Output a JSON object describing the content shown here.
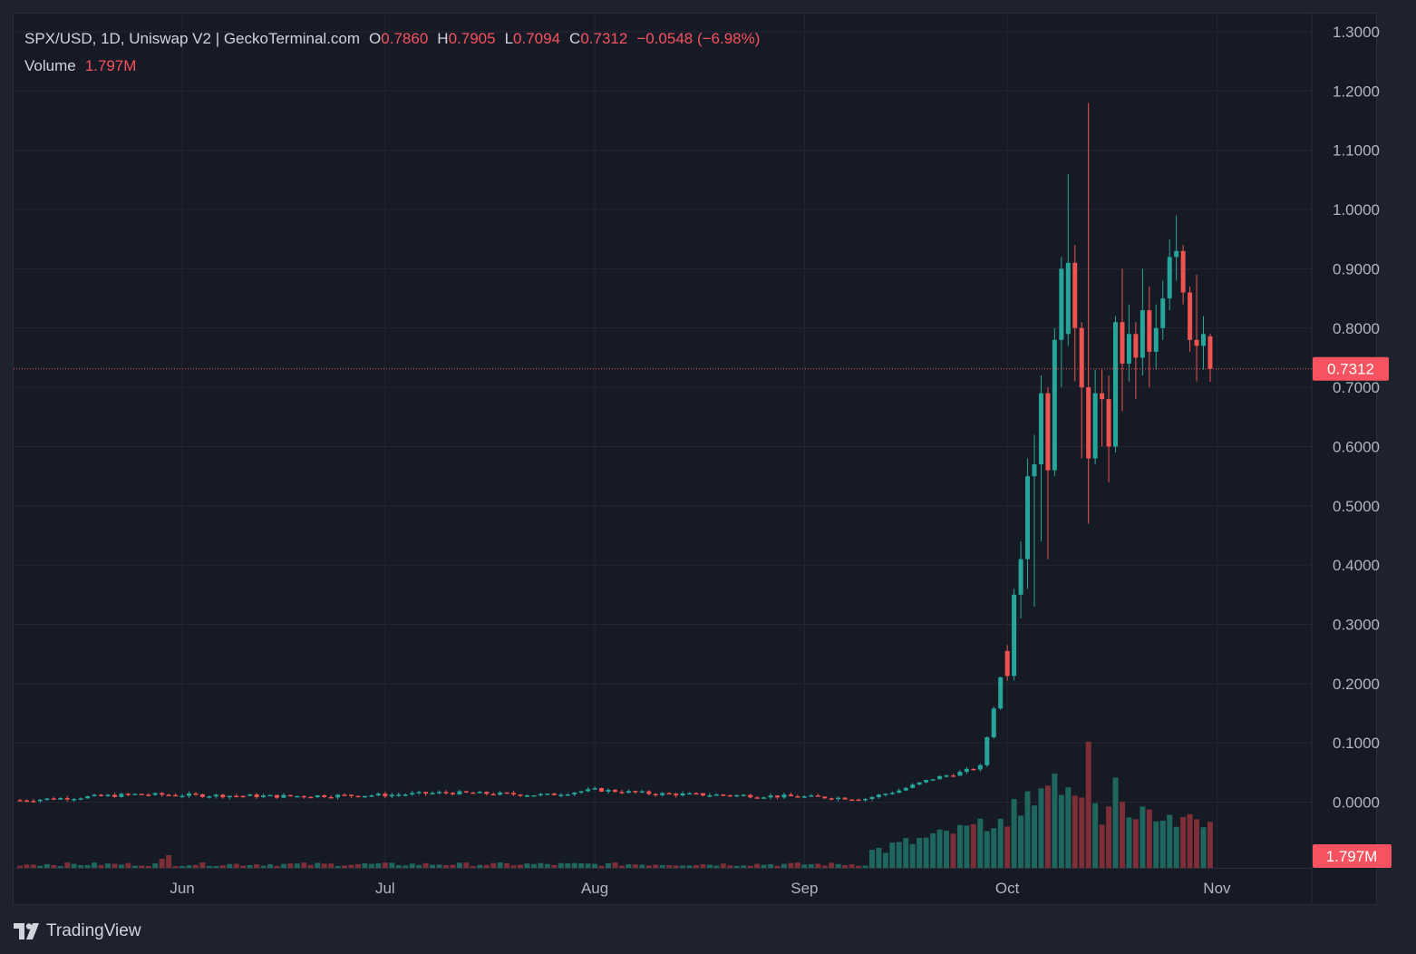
{
  "legend": {
    "symbol": "SPX/USD, 1D, Uniswap V2 | GeckoTerminal.com",
    "open_label": "O",
    "open_value": "0.7860",
    "high_label": "H",
    "high_value": "0.7905",
    "low_label": "L",
    "low_value": "0.7094",
    "close_label": "C",
    "close_value": "0.7312",
    "change": "−0.0548 (−6.98%)",
    "volume_label": "Volume",
    "volume_value": "1.797M"
  },
  "price_tag": "0.7312",
  "volume_tag": "1.797M",
  "brand": "TradingView",
  "colors": {
    "up": "#26a69a",
    "down": "#ef5350",
    "vol_up": "#1f665f",
    "vol_down": "#7d2e37",
    "tag": "#f7525f",
    "background": "#161a25",
    "grid": "#242733"
  },
  "chart_data": {
    "type": "candlestick",
    "title": "SPX/USD, 1D, Uniswap V2 | GeckoTerminal.com",
    "ylim": [
      -0.1,
      1.3
    ],
    "y_ticks": [
      "1.3000",
      "1.2000",
      "1.1000",
      "1.0000",
      "0.9000",
      "0.8000",
      "0.7000",
      "0.6000",
      "0.5000",
      "0.4000",
      "0.3000",
      "0.2000",
      "0.1000",
      "0.0000"
    ],
    "x_labels": [
      "Jun",
      "Jul",
      "Aug",
      "Sep",
      "Oct",
      "Nov"
    ],
    "x_range": [
      "2024-05-08",
      "2024-11-11"
    ],
    "current_price": 0.7312,
    "ohlc_from_oct": [
      {
        "date": "2024-10-01",
        "o": 0.255,
        "h": 0.265,
        "l": 0.205,
        "c": 0.213
      },
      {
        "date": "2024-10-02",
        "o": 0.213,
        "h": 0.36,
        "l": 0.205,
        "c": 0.35
      },
      {
        "date": "2024-10-03",
        "o": 0.35,
        "h": 0.44,
        "l": 0.31,
        "c": 0.41
      },
      {
        "date": "2024-10-04",
        "o": 0.41,
        "h": 0.58,
        "l": 0.36,
        "c": 0.55
      },
      {
        "date": "2024-10-05",
        "o": 0.55,
        "h": 0.62,
        "l": 0.33,
        "c": 0.57
      },
      {
        "date": "2024-10-06",
        "o": 0.57,
        "h": 0.72,
        "l": 0.44,
        "c": 0.69
      },
      {
        "date": "2024-10-07",
        "o": 0.69,
        "h": 0.7,
        "l": 0.41,
        "c": 0.56
      },
      {
        "date": "2024-10-08",
        "o": 0.56,
        "h": 0.8,
        "l": 0.55,
        "c": 0.78
      },
      {
        "date": "2024-10-09",
        "o": 0.78,
        "h": 0.92,
        "l": 0.7,
        "c": 0.9
      },
      {
        "date": "2024-10-10",
        "o": 0.79,
        "h": 1.06,
        "l": 0.77,
        "c": 0.91
      },
      {
        "date": "2024-10-11",
        "o": 0.91,
        "h": 0.94,
        "l": 0.71,
        "c": 0.8
      },
      {
        "date": "2024-10-12",
        "o": 0.8,
        "h": 0.81,
        "l": 0.58,
        "c": 0.7
      },
      {
        "date": "2024-10-13",
        "o": 0.7,
        "h": 1.18,
        "l": 0.47,
        "c": 0.58
      },
      {
        "date": "2024-10-14",
        "o": 0.58,
        "h": 0.73,
        "l": 0.57,
        "c": 0.69
      },
      {
        "date": "2024-10-15",
        "o": 0.69,
        "h": 0.73,
        "l": 0.6,
        "c": 0.68
      },
      {
        "date": "2024-10-16",
        "o": 0.68,
        "h": 0.72,
        "l": 0.54,
        "c": 0.6
      },
      {
        "date": "2024-10-17",
        "o": 0.6,
        "h": 0.82,
        "l": 0.59,
        "c": 0.81
      },
      {
        "date": "2024-10-18",
        "o": 0.81,
        "h": 0.9,
        "l": 0.66,
        "c": 0.74
      },
      {
        "date": "2024-10-19",
        "o": 0.74,
        "h": 0.84,
        "l": 0.71,
        "c": 0.79
      },
      {
        "date": "2024-10-20",
        "o": 0.79,
        "h": 0.81,
        "l": 0.68,
        "c": 0.75
      },
      {
        "date": "2024-10-21",
        "o": 0.75,
        "h": 0.9,
        "l": 0.72,
        "c": 0.83
      },
      {
        "date": "2024-10-22",
        "o": 0.83,
        "h": 0.87,
        "l": 0.7,
        "c": 0.76
      },
      {
        "date": "2024-10-23",
        "o": 0.76,
        "h": 0.84,
        "l": 0.73,
        "c": 0.8
      },
      {
        "date": "2024-10-24",
        "o": 0.8,
        "h": 0.88,
        "l": 0.78,
        "c": 0.85
      },
      {
        "date": "2024-10-25",
        "o": 0.85,
        "h": 0.95,
        "l": 0.83,
        "c": 0.92
      },
      {
        "date": "2024-10-26",
        "o": 0.92,
        "h": 0.99,
        "l": 0.88,
        "c": 0.93
      },
      {
        "date": "2024-10-27",
        "o": 0.93,
        "h": 0.94,
        "l": 0.84,
        "c": 0.86
      },
      {
        "date": "2024-10-28",
        "o": 0.86,
        "h": 0.87,
        "l": 0.76,
        "c": 0.78
      },
      {
        "date": "2024-10-29",
        "o": 0.78,
        "h": 0.89,
        "l": 0.71,
        "c": 0.77
      },
      {
        "date": "2024-10-30",
        "o": 0.77,
        "h": 0.82,
        "l": 0.73,
        "c": 0.79
      },
      {
        "date": "2024-10-31",
        "o": 0.786,
        "h": 0.7905,
        "l": 0.7094,
        "c": 0.7312
      }
    ]
  }
}
